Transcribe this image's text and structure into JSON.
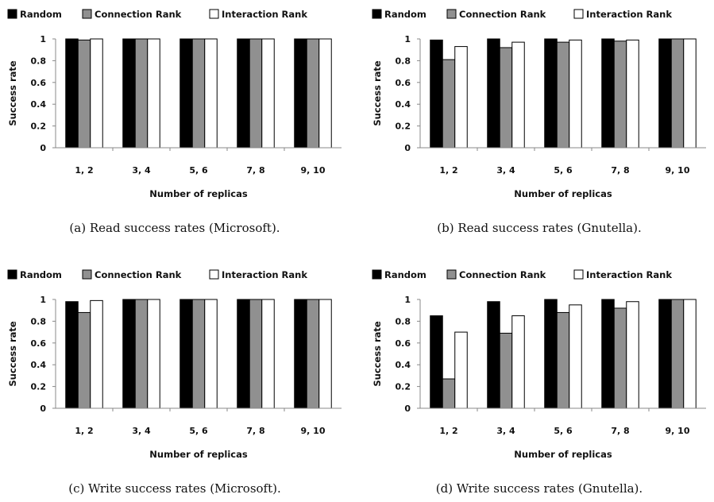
{
  "chart_data": [
    {
      "type": "bar",
      "panel_label": "(a)",
      "caption": "Read success rates (Microsoft).",
      "categories": [
        "1, 2",
        "3, 4",
        "5, 6",
        "7, 8",
        "9, 10"
      ],
      "series": [
        {
          "name": "Random",
          "color": "#000000",
          "values": [
            1,
            1,
            1,
            1,
            1
          ]
        },
        {
          "name": "Connection Rank",
          "color": "#909090",
          "values": [
            0.99,
            1,
            1,
            1,
            1
          ]
        },
        {
          "name": "Interaction Rank",
          "color": "#ffffff",
          "values": [
            1,
            1,
            1,
            1,
            1
          ]
        }
      ],
      "xlabel": "Number of replicas",
      "ylabel": "Success rate",
      "ylim": [
        0,
        1
      ],
      "yticks": [
        "0",
        "0.2",
        "0.4",
        "0.6",
        "0.8",
        "1"
      ],
      "legend": "top",
      "grid": false
    },
    {
      "type": "bar",
      "panel_label": "(b)",
      "caption": "Read success rates (Gnutella).",
      "categories": [
        "1, 2",
        "3, 4",
        "5, 6",
        "7, 8",
        "9, 10"
      ],
      "series": [
        {
          "name": "Random",
          "color": "#000000",
          "values": [
            0.99,
            1,
            1,
            1,
            1
          ]
        },
        {
          "name": "Connection Rank",
          "color": "#909090",
          "values": [
            0.81,
            0.92,
            0.97,
            0.98,
            1
          ]
        },
        {
          "name": "Interaction Rank",
          "color": "#ffffff",
          "values": [
            0.93,
            0.97,
            0.99,
            0.99,
            1
          ]
        }
      ],
      "xlabel": "Number of replicas",
      "ylabel": "Success rate",
      "ylim": [
        0,
        1
      ],
      "yticks": [
        "0",
        "0.2",
        "0.4",
        "0.6",
        "0.8",
        "1"
      ],
      "legend": "top",
      "grid": false
    },
    {
      "type": "bar",
      "panel_label": "(c)",
      "caption": "Write success rates (Microsoft).",
      "categories": [
        "1, 2",
        "3, 4",
        "5, 6",
        "7, 8",
        "9, 10"
      ],
      "series": [
        {
          "name": "Random",
          "color": "#000000",
          "values": [
            0.98,
            1,
            1,
            1,
            1
          ]
        },
        {
          "name": "Connection Rank",
          "color": "#909090",
          "values": [
            0.88,
            1,
            1,
            1,
            1
          ]
        },
        {
          "name": "Interaction Rank",
          "color": "#ffffff",
          "values": [
            0.99,
            1,
            1,
            1,
            1
          ]
        }
      ],
      "xlabel": "Number of replicas",
      "ylabel": "Success rate",
      "ylim": [
        0,
        1
      ],
      "yticks": [
        "0",
        "0.2",
        "0.4",
        "0.6",
        "0.8",
        "1"
      ],
      "legend": "top",
      "grid": false
    },
    {
      "type": "bar",
      "panel_label": "(d)",
      "caption": "Write success rates (Gnutella).",
      "categories": [
        "1, 2",
        "3, 4",
        "5, 6",
        "7, 8",
        "9, 10"
      ],
      "series": [
        {
          "name": "Random",
          "color": "#000000",
          "values": [
            0.85,
            0.98,
            1,
            1,
            1
          ]
        },
        {
          "name": "Connection Rank",
          "color": "#909090",
          "values": [
            0.27,
            0.69,
            0.88,
            0.92,
            1
          ]
        },
        {
          "name": "Interaction Rank",
          "color": "#ffffff",
          "values": [
            0.7,
            0.85,
            0.95,
            0.98,
            1
          ]
        }
      ],
      "xlabel": "Number of replicas",
      "ylabel": "Success rate",
      "ylim": [
        0,
        1
      ],
      "yticks": [
        "0",
        "0.2",
        "0.4",
        "0.6",
        "0.8",
        "1"
      ],
      "legend": "top",
      "grid": false
    }
  ]
}
